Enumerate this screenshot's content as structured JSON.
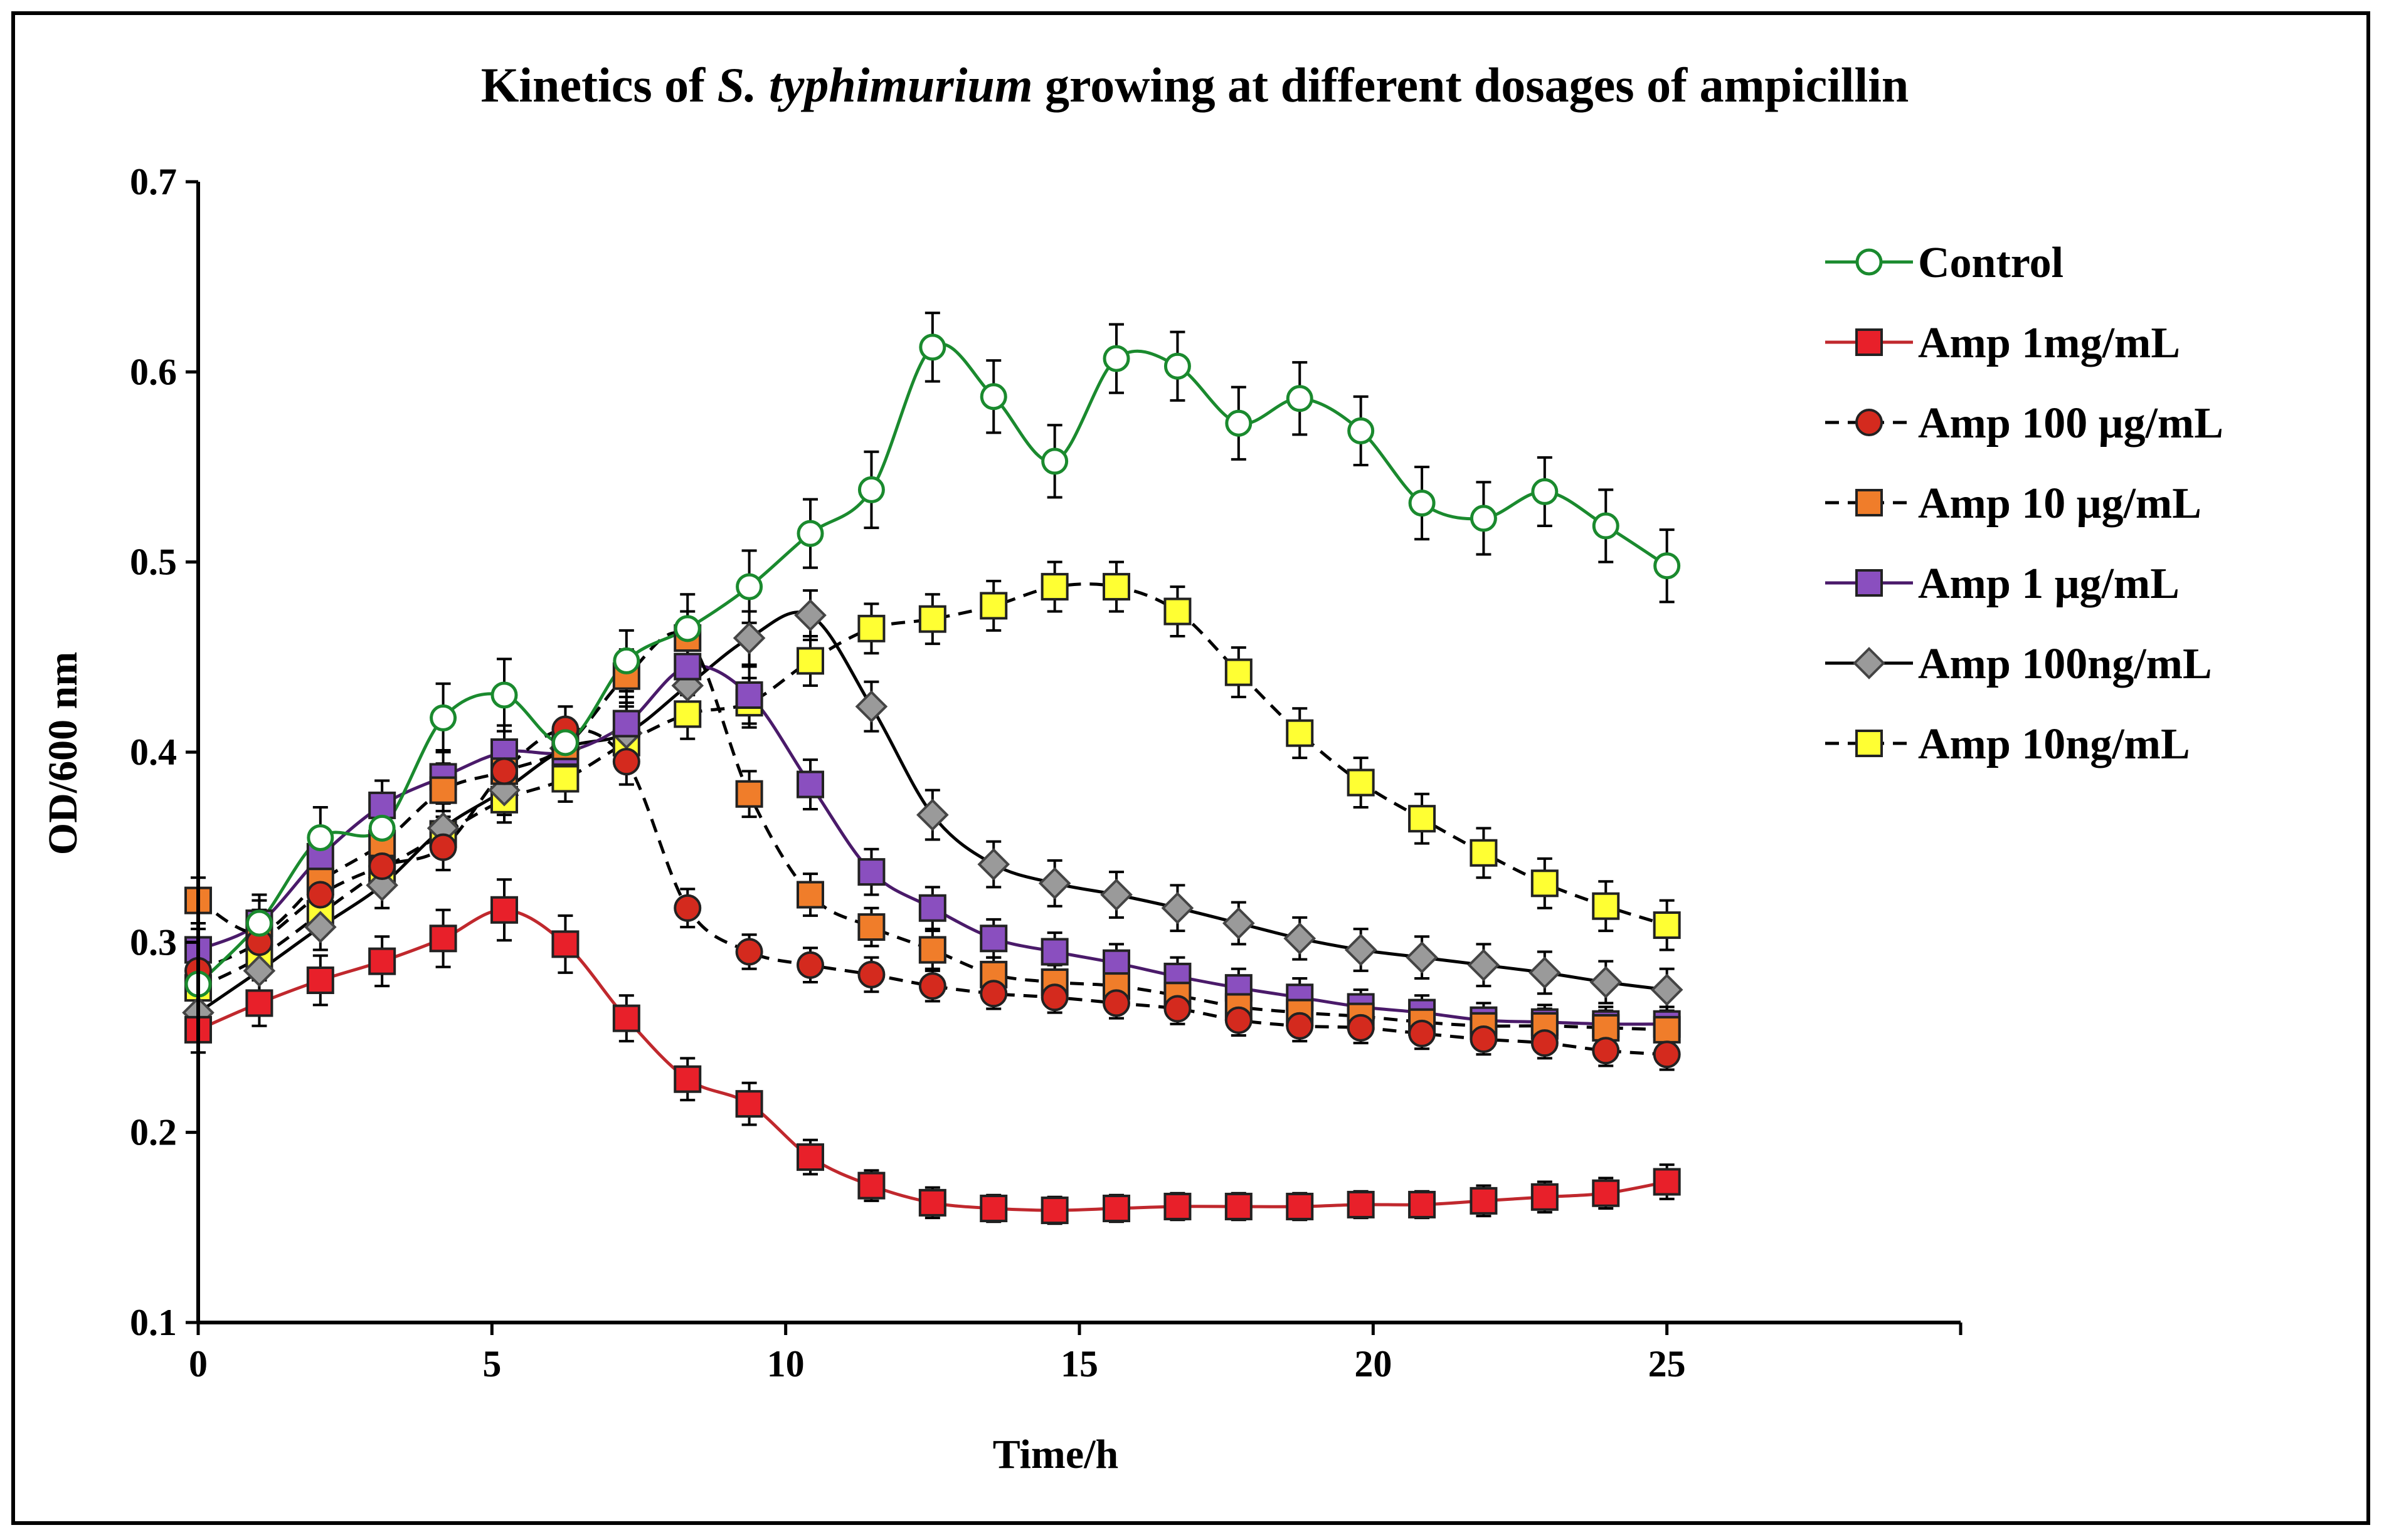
{
  "chart_data": {
    "type": "line",
    "title": {
      "before": "Kinetics of ",
      "italic": "S. typhimurium",
      "after": " growing at different dosages of ampicillin"
    },
    "xlabel": "Time/h",
    "ylabel": "OD/600 nm",
    "xlim": [
      0,
      30
    ],
    "ylim": [
      0.1,
      0.7
    ],
    "x_ticks": [
      0,
      5,
      10,
      15,
      20,
      25
    ],
    "x_tick_labels": [
      "0",
      "5",
      "10",
      "15",
      "20",
      "25"
    ],
    "y_ticks": [
      0.1,
      0.2,
      0.3,
      0.4,
      0.5,
      0.6,
      0.7
    ],
    "y_tick_labels": [
      "0.1",
      "0.2",
      "0.3",
      "0.4",
      "0.5",
      "0.6",
      "0.7"
    ],
    "legend_position": "right",
    "x": [
      0,
      1.04,
      2.08,
      3.13,
      4.17,
      5.21,
      6.25,
      7.29,
      8.33,
      9.38,
      10.42,
      11.46,
      12.5,
      13.54,
      14.58,
      15.63,
      16.67,
      17.71,
      18.75,
      19.79,
      20.83,
      21.88,
      22.92,
      23.96,
      25.0
    ],
    "series": [
      {
        "name": "Control",
        "color": "#1a8a2e",
        "fill": "#ffffff",
        "marker": "circle-open",
        "dash": "solid",
        "values": [
          0.278,
          0.31,
          0.355,
          0.36,
          0.418,
          0.43,
          0.405,
          0.448,
          0.465,
          0.487,
          0.515,
          0.538,
          0.613,
          0.587,
          0.553,
          0.607,
          0.603,
          0.573,
          0.586,
          0.569,
          0.531,
          0.523,
          0.537,
          0.519,
          0.498
        ],
        "errors": [
          0.012,
          0.015,
          0.016,
          0.012,
          0.018,
          0.019,
          0.012,
          0.016,
          0.018,
          0.019,
          0.018,
          0.02,
          0.018,
          0.019,
          0.019,
          0.018,
          0.018,
          0.019,
          0.019,
          0.018,
          0.019,
          0.019,
          0.018,
          0.019,
          0.019
        ]
      },
      {
        "name": "Amp 1mg/mL",
        "color": "#c0282d",
        "fill": "#e8202a",
        "marker": "square",
        "dash": "solid",
        "values": [
          0.254,
          0.268,
          0.28,
          0.29,
          0.302,
          0.317,
          0.299,
          0.26,
          0.228,
          0.215,
          0.187,
          0.172,
          0.163,
          0.16,
          0.159,
          0.16,
          0.161,
          0.161,
          0.161,
          0.162,
          0.162,
          0.164,
          0.166,
          0.168,
          0.174
        ],
        "errors": [
          0.012,
          0.012,
          0.013,
          0.013,
          0.015,
          0.016,
          0.015,
          0.012,
          0.011,
          0.011,
          0.009,
          0.008,
          0.008,
          0.007,
          0.007,
          0.007,
          0.007,
          0.007,
          0.007,
          0.007,
          0.007,
          0.008,
          0.008,
          0.008,
          0.009
        ]
      },
      {
        "name": "Amp 100 μg/mL",
        "color": "#000000",
        "fill": "#d42a1e",
        "marker": "circle",
        "dash": "dashed",
        "values": [
          0.285,
          0.3,
          0.325,
          0.34,
          0.35,
          0.39,
          0.412,
          0.395,
          0.318,
          0.295,
          0.288,
          0.283,
          0.277,
          0.273,
          0.271,
          0.268,
          0.265,
          0.259,
          0.256,
          0.255,
          0.252,
          0.249,
          0.247,
          0.243,
          0.241
        ],
        "errors": [
          0.01,
          0.01,
          0.01,
          0.01,
          0.012,
          0.012,
          0.012,
          0.012,
          0.01,
          0.009,
          0.009,
          0.009,
          0.008,
          0.008,
          0.008,
          0.008,
          0.008,
          0.008,
          0.008,
          0.008,
          0.008,
          0.008,
          0.008,
          0.008,
          0.008
        ]
      },
      {
        "name": "Amp 10 μg/mL",
        "color": "#000000",
        "fill": "#f07d2a",
        "marker": "square",
        "dash": "dashed",
        "values": [
          0.322,
          0.305,
          0.332,
          0.352,
          0.38,
          0.39,
          0.403,
          0.44,
          0.46,
          0.378,
          0.325,
          0.308,
          0.296,
          0.283,
          0.279,
          0.277,
          0.272,
          0.266,
          0.263,
          0.261,
          0.258,
          0.256,
          0.256,
          0.255,
          0.254
        ],
        "errors": [
          0.012,
          0.012,
          0.012,
          0.013,
          0.014,
          0.014,
          0.014,
          0.014,
          0.014,
          0.012,
          0.011,
          0.01,
          0.01,
          0.009,
          0.009,
          0.009,
          0.009,
          0.009,
          0.009,
          0.009,
          0.009,
          0.009,
          0.009,
          0.009,
          0.009
        ]
      },
      {
        "name": "Amp 1 μg/mL",
        "color": "#4a1a6a",
        "fill": "#8a4fbf",
        "marker": "square",
        "dash": "solid",
        "values": [
          0.296,
          0.31,
          0.345,
          0.372,
          0.387,
          0.4,
          0.4,
          0.415,
          0.445,
          0.43,
          0.383,
          0.337,
          0.318,
          0.302,
          0.295,
          0.289,
          0.282,
          0.276,
          0.271,
          0.266,
          0.263,
          0.259,
          0.258,
          0.257,
          0.257
        ],
        "errors": [
          0.011,
          0.012,
          0.013,
          0.013,
          0.014,
          0.014,
          0.014,
          0.014,
          0.015,
          0.015,
          0.013,
          0.012,
          0.011,
          0.01,
          0.01,
          0.01,
          0.01,
          0.01,
          0.01,
          0.009,
          0.009,
          0.009,
          0.009,
          0.009,
          0.009
        ]
      },
      {
        "name": "Amp 100ng/mL",
        "color": "#000000",
        "fill": "#9a9a9a",
        "marker": "diamond",
        "dash": "solid",
        "values": [
          0.263,
          0.285,
          0.308,
          0.33,
          0.36,
          0.38,
          0.402,
          0.41,
          0.435,
          0.46,
          0.472,
          0.424,
          0.367,
          0.341,
          0.331,
          0.325,
          0.318,
          0.31,
          0.302,
          0.296,
          0.292,
          0.288,
          0.284,
          0.279,
          0.275
        ],
        "errors": [
          0.01,
          0.011,
          0.012,
          0.012,
          0.013,
          0.013,
          0.014,
          0.014,
          0.014,
          0.014,
          0.013,
          0.013,
          0.013,
          0.012,
          0.012,
          0.012,
          0.012,
          0.011,
          0.011,
          0.011,
          0.011,
          0.011,
          0.011,
          0.011,
          0.011
        ]
      },
      {
        "name": "Amp 10ng/mL",
        "color": "#000000",
        "fill": "#ffff33",
        "marker": "square",
        "dash": "dashed",
        "values": [
          0.276,
          0.292,
          0.315,
          0.338,
          0.357,
          0.375,
          0.386,
          0.405,
          0.42,
          0.426,
          0.448,
          0.465,
          0.47,
          0.477,
          0.487,
          0.487,
          0.474,
          0.442,
          0.41,
          0.384,
          0.365,
          0.347,
          0.331,
          0.319,
          0.309
        ],
        "errors": [
          0.01,
          0.011,
          0.011,
          0.012,
          0.012,
          0.012,
          0.012,
          0.013,
          0.013,
          0.013,
          0.013,
          0.013,
          0.013,
          0.013,
          0.013,
          0.013,
          0.013,
          0.013,
          0.013,
          0.013,
          0.013,
          0.013,
          0.013,
          0.013,
          0.013
        ]
      }
    ]
  }
}
